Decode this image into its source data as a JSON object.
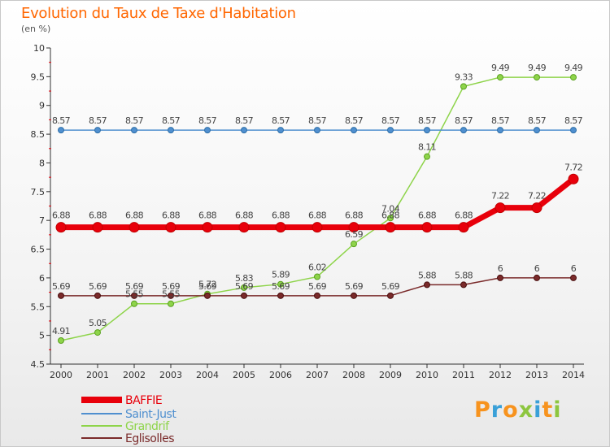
{
  "title": "Evolution du Taux de Taxe d'Habitation",
  "unit": "(en %)",
  "logo": {
    "text": "Proxiti",
    "colors": [
      "#f7931e",
      "#3aa0d8",
      "#f7931e",
      "#8dc63f",
      "#3aa0d8",
      "#f7931e",
      "#8dc63f"
    ]
  },
  "chart_data": {
    "type": "line",
    "title": "Evolution du Taux de Taxe d'Habitation",
    "ylabel": "(en %)",
    "xlabel": "",
    "x": [
      "2000",
      "2001",
      "2002",
      "2003",
      "2004",
      "2005",
      "2006",
      "2007",
      "2008",
      "2009",
      "2010",
      "2011",
      "2012",
      "2013",
      "2014"
    ],
    "ylim": [
      4.5,
      10
    ],
    "yticks": [
      "4.5",
      "5",
      "5.5",
      "6",
      "6.5",
      "7",
      "7.5",
      "8",
      "8.5",
      "9",
      "9.5",
      "10"
    ],
    "grid": false,
    "legend_position": "bottom-left",
    "series": [
      {
        "name": "BAFFIE",
        "color": "#e8000b",
        "line_width": 7,
        "marker_radius": 6,
        "values": [
          6.88,
          6.88,
          6.88,
          6.88,
          6.88,
          6.88,
          6.88,
          6.88,
          6.88,
          6.88,
          6.88,
          6.88,
          7.22,
          7.22,
          7.72
        ],
        "labels": [
          "6.88",
          "6.88",
          "6.88",
          "6.88",
          "6.88",
          "6.88",
          "6.88",
          "6.88",
          "6.88",
          "6.88",
          "6.88",
          "6.88",
          "7.22",
          "7.22",
          "7.72"
        ]
      },
      {
        "name": "Saint-Just",
        "color": "#4f8fcf",
        "line_width": 1.5,
        "marker_radius": 3.5,
        "values": [
          8.57,
          8.57,
          8.57,
          8.57,
          8.57,
          8.57,
          8.57,
          8.57,
          8.57,
          8.57,
          8.57,
          8.57,
          8.57,
          8.57,
          8.57
        ],
        "labels": [
          "8.57",
          "8.57",
          "8.57",
          "8.57",
          "8.57",
          "8.57",
          "8.57",
          "8.57",
          "8.57",
          "8.57",
          "8.57",
          "8.57",
          "8.57",
          "8.57",
          "8.57"
        ]
      },
      {
        "name": "Grandrif",
        "color": "#8ed44a",
        "line_width": 1.5,
        "marker_radius": 3.5,
        "values": [
          4.91,
          5.05,
          5.55,
          5.55,
          5.72,
          5.83,
          5.89,
          6.02,
          6.59,
          7.04,
          8.11,
          9.33,
          9.49,
          9.49,
          9.49
        ],
        "labels": [
          "4.91",
          "5.05",
          "5.55",
          "5.55",
          "5.72",
          "5.83",
          "5.89",
          "6.02",
          "6.59",
          "7.04",
          "8.11",
          "9.33",
          "9.49",
          "9.49",
          "9.49"
        ]
      },
      {
        "name": "Eglisolles",
        "color": "#7a2a2a",
        "line_width": 1.5,
        "marker_radius": 3.5,
        "values": [
          5.69,
          5.69,
          5.69,
          5.69,
          5.69,
          5.69,
          5.69,
          5.69,
          5.69,
          5.69,
          5.88,
          5.88,
          6,
          6,
          6
        ],
        "labels": [
          "5.69",
          "5.69",
          "5.69",
          "5.69",
          "5.69",
          "5.69",
          "5.69",
          "5.69",
          "5.69",
          "5.69",
          "5.88",
          "5.88",
          "6",
          "6",
          "6"
        ]
      }
    ]
  }
}
